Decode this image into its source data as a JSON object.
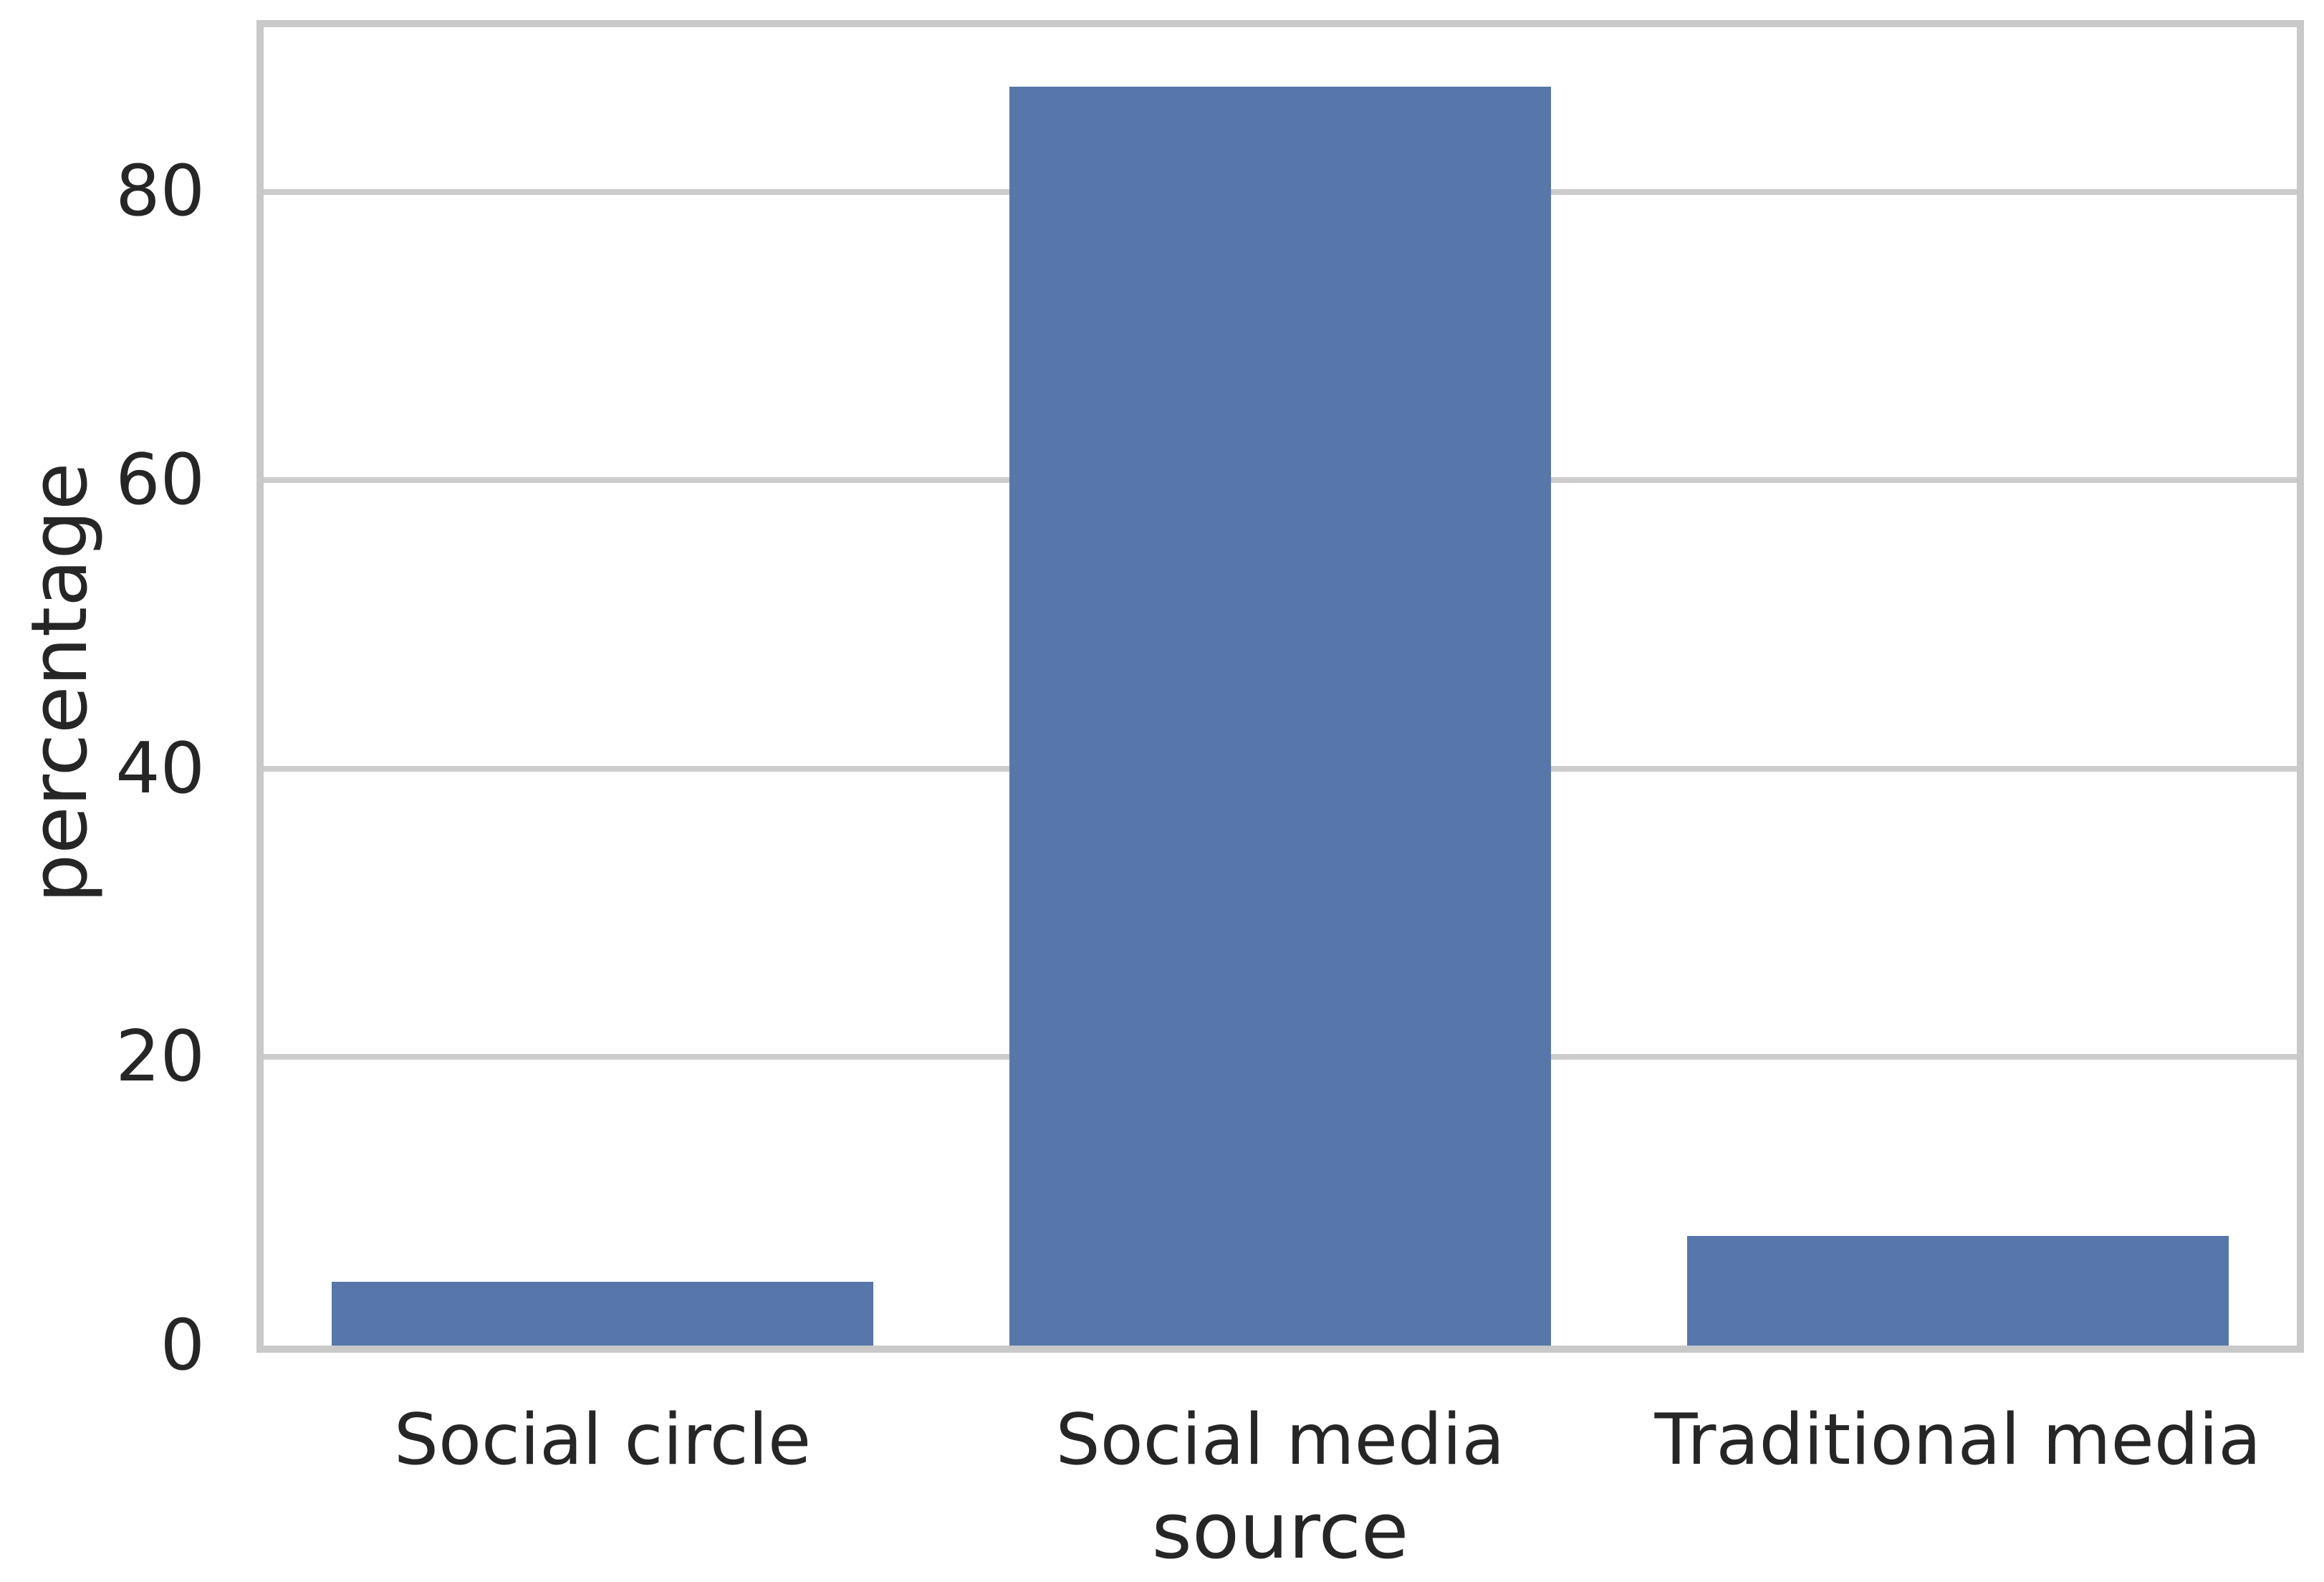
{
  "chart_data": {
    "type": "bar",
    "title": "",
    "categories": [
      "Social circle",
      "Social media",
      "Traditional media"
    ],
    "values": [
      4.4,
      87.3,
      7.6
    ],
    "xlabel": "source",
    "ylabel": "percentage",
    "yticks": [
      0,
      20,
      40,
      60,
      80
    ],
    "ylim": [
      0,
      91.4
    ],
    "grid": true,
    "legend": "none",
    "bar_width_frac": 0.8,
    "bar_color": "#5776a9",
    "grid_color": "#cccccc",
    "spine_color": "#c9c9c9",
    "text_color": "#262626",
    "background_color": "#ffffff"
  }
}
